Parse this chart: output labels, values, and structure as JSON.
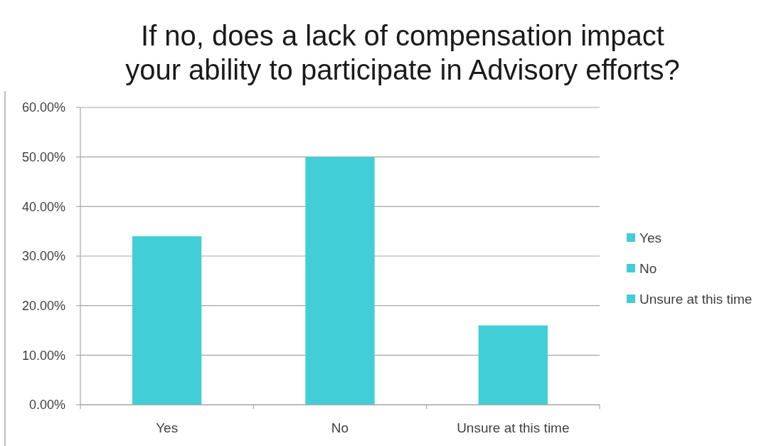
{
  "chart_data": {
    "type": "bar",
    "title": "If no, does a lack of compensation impact\nyour ability to participate in Advisory efforts?",
    "categories": [
      "Yes",
      "No",
      "Unsure at this time"
    ],
    "series": [
      {
        "name": "Yes",
        "color": "#41ced6",
        "values": [
          34,
          null,
          null
        ]
      },
      {
        "name": "No",
        "color": "#41ced6",
        "values": [
          null,
          50,
          null
        ]
      },
      {
        "name": "Unsure at this time",
        "color": "#41ced6",
        "values": [
          null,
          null,
          16
        ]
      }
    ],
    "stacked": true,
    "ylim": [
      0,
      60
    ],
    "yticks": [
      {
        "value": 0,
        "label": "0.00%"
      },
      {
        "value": 10,
        "label": "10.00%"
      },
      {
        "value": 20,
        "label": "20.00%"
      },
      {
        "value": 30,
        "label": "30.00%"
      },
      {
        "value": 40,
        "label": "40.00%"
      },
      {
        "value": 50,
        "label": "50.00%"
      },
      {
        "value": 60,
        "label": "60.00%"
      }
    ],
    "grid": "y",
    "legend": "right"
  }
}
